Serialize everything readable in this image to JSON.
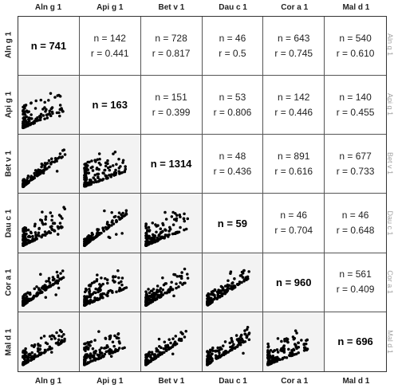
{
  "chart_data": {
    "type": "scatter-matrix",
    "allergens": [
      "Aln g 1",
      "Api g 1",
      "Bet v 1",
      "Dau c 1",
      "Cor a 1",
      "Mal d 1"
    ],
    "right_labels": [
      "Aln g 1",
      "Api g 1",
      "Bet v 1",
      "Dau c 1",
      "Cor a 1",
      "Mal d 1"
    ],
    "diagonal": [
      {
        "label": "n = 741"
      },
      {
        "label": "n = 163"
      },
      {
        "label": "n = 1314"
      },
      {
        "label": "n = 59"
      },
      {
        "label": "n = 960"
      },
      {
        "label": "n = 696"
      }
    ],
    "pairs": [
      {
        "row": 0,
        "col": 1,
        "n": "n = 142",
        "r": "r = 0.441"
      },
      {
        "row": 0,
        "col": 2,
        "n": "n = 728",
        "r": "r = 0.817"
      },
      {
        "row": 0,
        "col": 3,
        "n": "n = 46",
        "r": "r = 0.5"
      },
      {
        "row": 0,
        "col": 4,
        "n": "n = 643",
        "r": "r = 0.745"
      },
      {
        "row": 0,
        "col": 5,
        "n": "n = 540",
        "r": "r = 0.610"
      },
      {
        "row": 1,
        "col": 2,
        "n": "n = 151",
        "r": "r = 0.399"
      },
      {
        "row": 1,
        "col": 3,
        "n": "n = 53",
        "r": "r = 0.806"
      },
      {
        "row": 1,
        "col": 4,
        "n": "n = 142",
        "r": "r = 0.446"
      },
      {
        "row": 1,
        "col": 5,
        "n": "n = 140",
        "r": "r = 0.455"
      },
      {
        "row": 2,
        "col": 3,
        "n": "n = 48",
        "r": "r = 0.436"
      },
      {
        "row": 2,
        "col": 4,
        "n": "n = 891",
        "r": "r = 0.616"
      },
      {
        "row": 2,
        "col": 5,
        "n": "n = 677",
        "r": "r = 0.733"
      },
      {
        "row": 3,
        "col": 4,
        "n": "n = 46",
        "r": "r = 0.704"
      },
      {
        "row": 3,
        "col": 5,
        "n": "n = 46",
        "r": "r = 0.648"
      },
      {
        "row": 4,
        "col": 5,
        "n": "n = 561",
        "r": "r = 0.409"
      }
    ],
    "scatter_color": "#000000",
    "grid": false
  }
}
